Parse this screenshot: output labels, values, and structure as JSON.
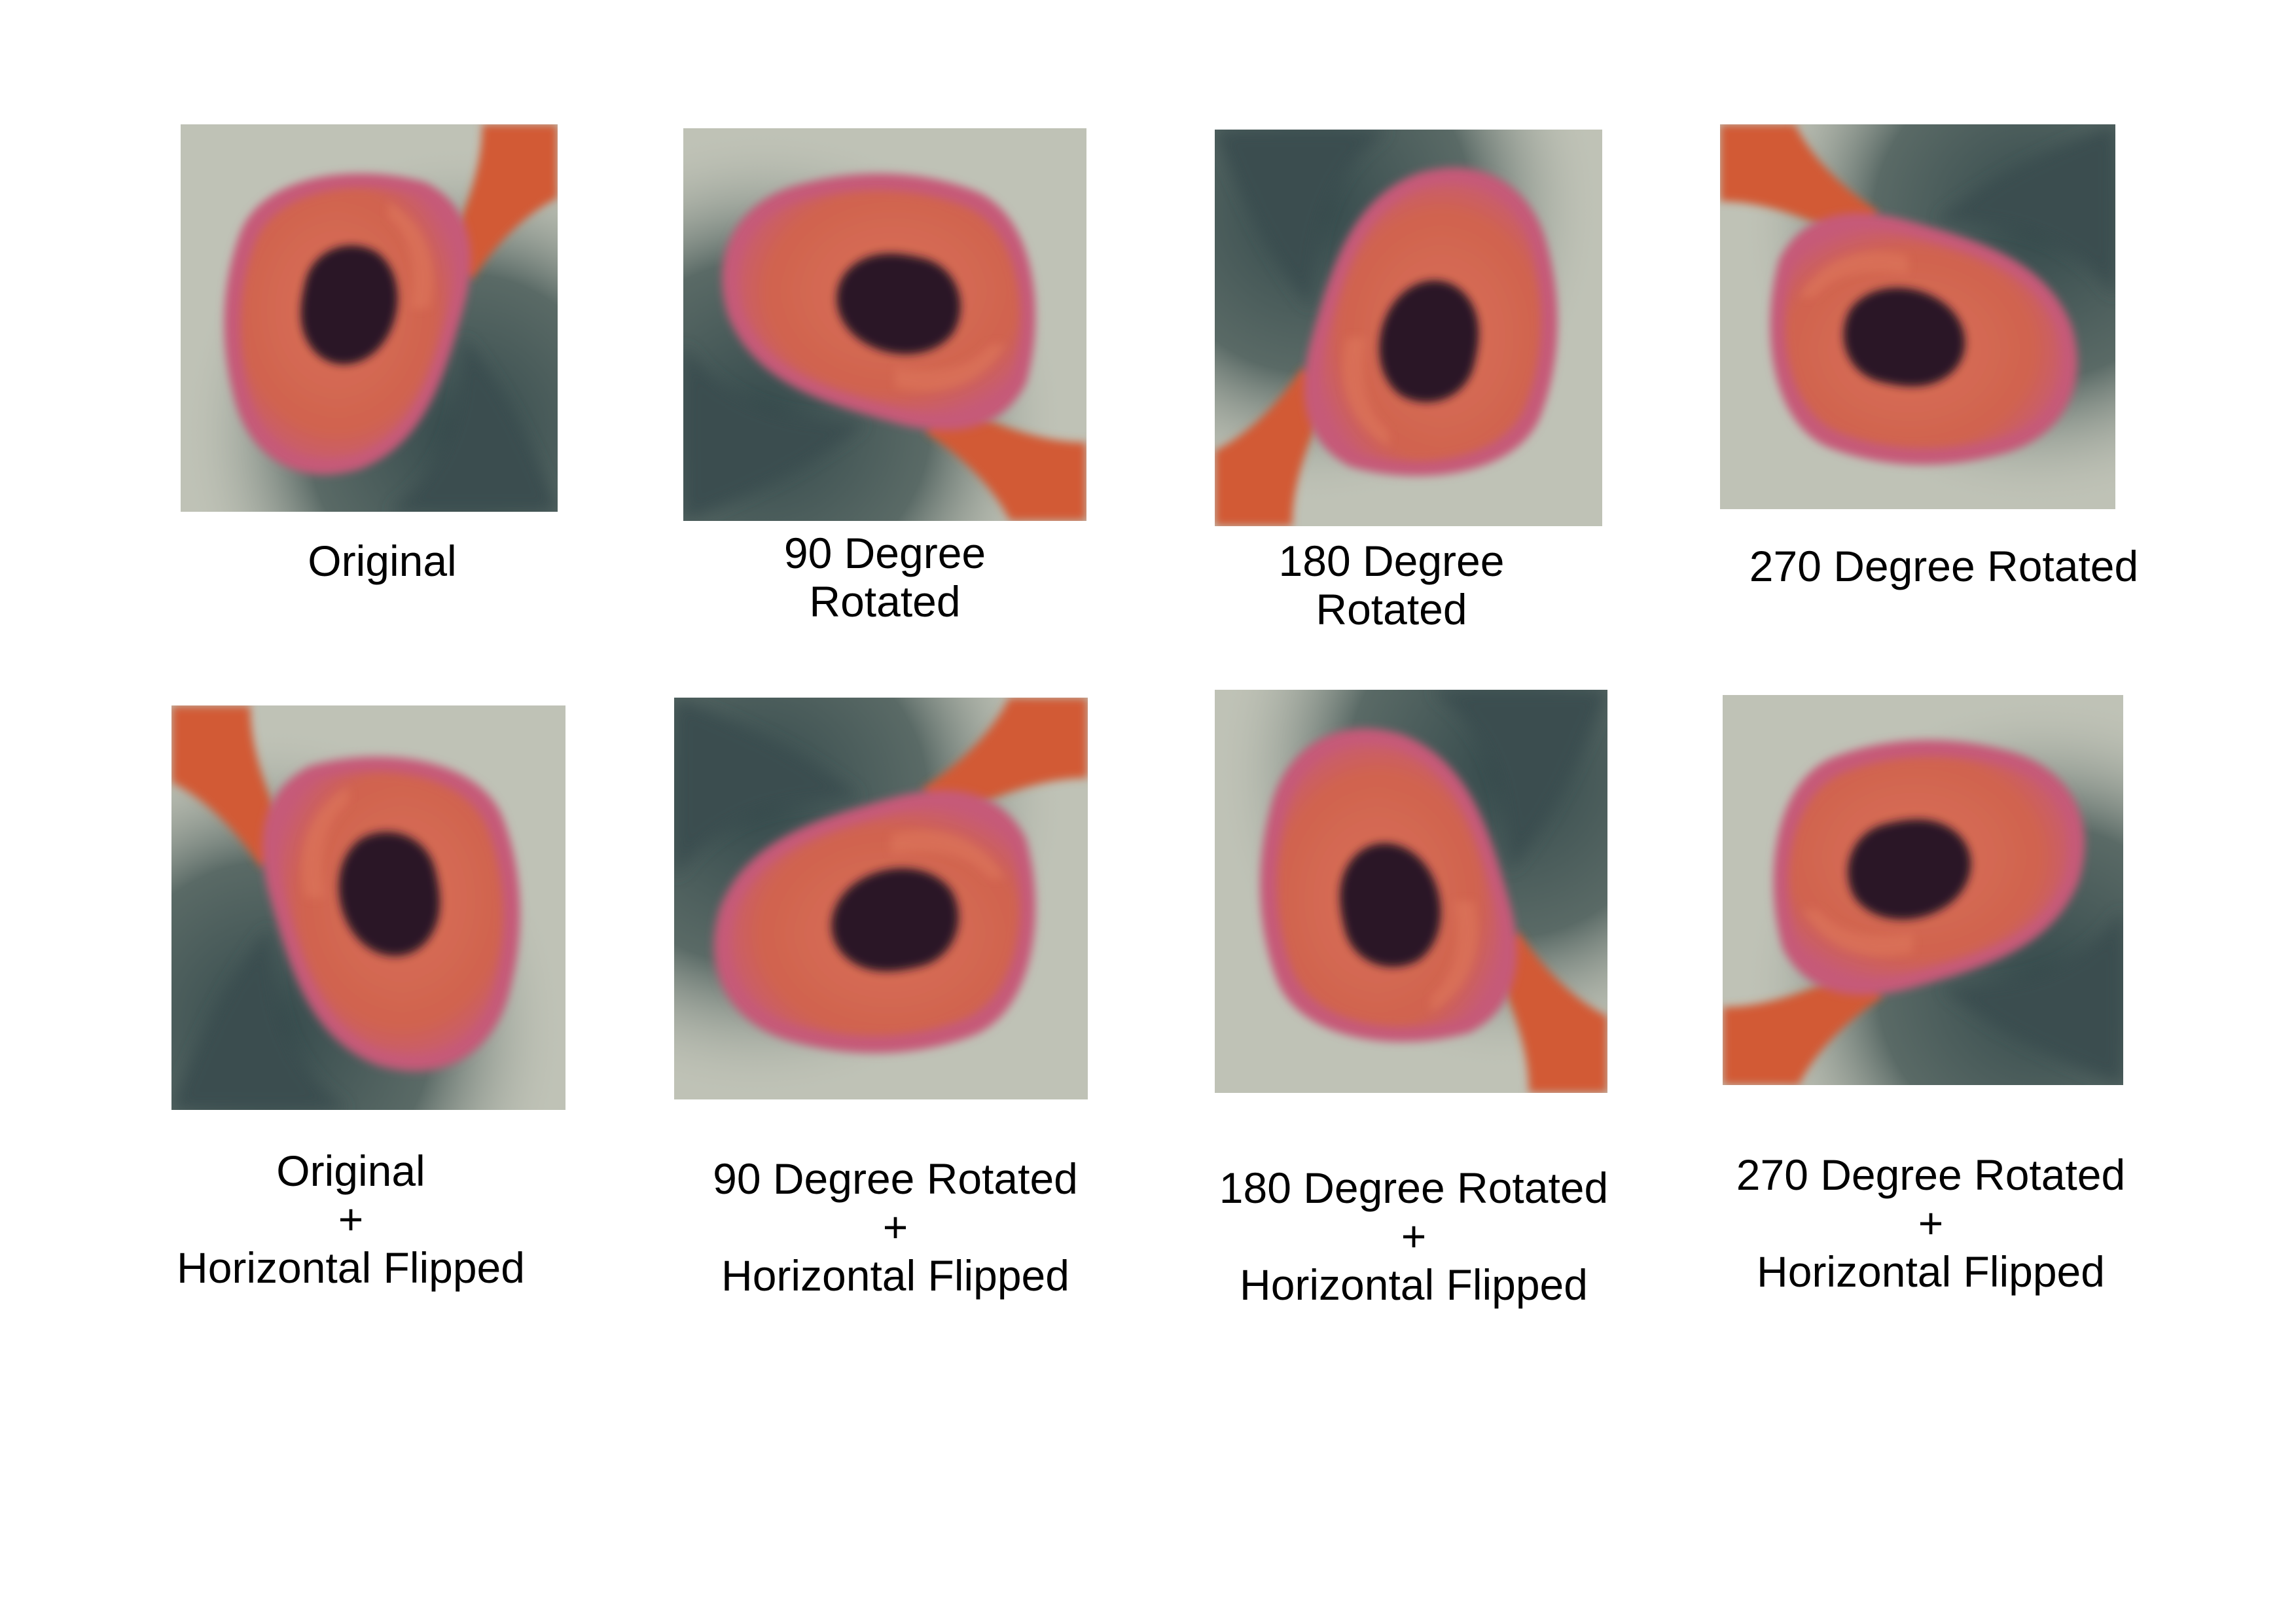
{
  "panels": [
    {
      "caption": "Original",
      "transform": "none"
    },
    {
      "caption": "90 Degree\nRotated",
      "transform": "rotate-90"
    },
    {
      "caption": "180 Degree\nRotated",
      "transform": "rotate-180"
    },
    {
      "caption": "270 Degree Rotated",
      "transform": "rotate-270"
    },
    {
      "caption": "Original\n+\nHorizontal Flipped",
      "transform": "flip"
    },
    {
      "caption": "90 Degree Rotated\n+\nHorizontal Flipped",
      "transform": "rotate-90-flip"
    },
    {
      "caption": "180 Degree Rotated\n+\nHorizontal Flipped",
      "transform": "rotate-180-flip"
    },
    {
      "caption": "270 Degree Rotated\n+\nHorizontal Flipped",
      "transform": "rotate-270-flip"
    }
  ],
  "colors": {
    "background_light": "#bfc2b6",
    "background_dark": "#3f5152",
    "cell_body": "#d4674f",
    "cell_edge": "#c25a78",
    "nucleus": "#2a1426",
    "tail": "#d25a35"
  }
}
